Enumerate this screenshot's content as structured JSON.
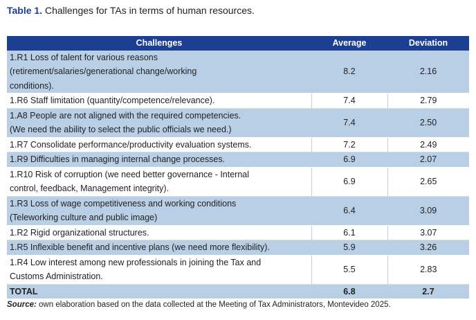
{
  "title": {
    "label": "Table 1.",
    "text": " Challenges for TAs in terms of human resources."
  },
  "table": {
    "headers": [
      "Challenges",
      "Average",
      "Deviation"
    ],
    "rows": [
      {
        "lines": [
          "1.R1 Loss of talent for various reasons",
          "(retirement/salaries/generational change/working",
          "conditions)."
        ],
        "average": "8.2",
        "deviation": "2.16"
      },
      {
        "lines": [
          "1.R6 Staff limitation (quantity/competence/relevance)."
        ],
        "average": "7.4",
        "deviation": "2.79"
      },
      {
        "lines": [
          "1.A8 People are not aligned with the required competencies.",
          "(We need the ability to select the public officials we need.)"
        ],
        "average": "7.4",
        "deviation": "2.50"
      },
      {
        "lines": [
          "1.R7 Consolidate performance/productivity evaluation systems."
        ],
        "average": "7.2",
        "deviation": "2.49"
      },
      {
        "lines": [
          "1.R9 Difficulties in managing internal change processes."
        ],
        "average": "6.9",
        "deviation": "2.07"
      },
      {
        "lines": [
          "1.R10 Risk of corruption (we need better governance - Internal",
          "control, feedback, Management integrity)."
        ],
        "average": "6.9",
        "deviation": "2.65"
      },
      {
        "lines": [
          "1.R3 Loss of wage competitiveness and working conditions",
          "(Teleworking culture and public image)"
        ],
        "average": "6.4",
        "deviation": "3.09"
      },
      {
        "lines": [
          "1.R2 Rigid organizational structures."
        ],
        "average": "6.1",
        "deviation": "3.07"
      },
      {
        "lines": [
          "1.R5 Inflexible benefit and incentive plans (we need more flexibility)."
        ],
        "average": "5.9",
        "deviation": "3.26"
      },
      {
        "lines": [
          "1.R4 Low interest among new professionals in joining the Tax and",
          "Customs Administration."
        ],
        "average": "5.5",
        "deviation": "2.83"
      }
    ],
    "total": {
      "label": "TOTAL",
      "average": "6.8",
      "deviation": "2.7"
    }
  },
  "source": {
    "label": "Source:",
    "text": " own elaboration based on the data collected at the Meeting of Tax Administrators, Montevideo 2025."
  },
  "colors": {
    "header": "#1c3f94",
    "band": "#b8cfe6"
  }
}
